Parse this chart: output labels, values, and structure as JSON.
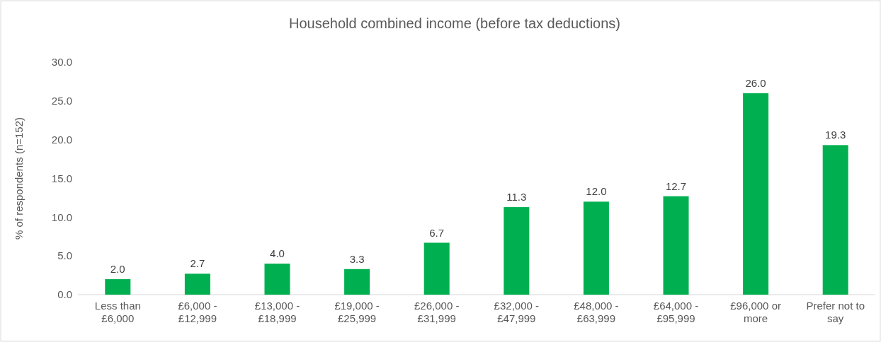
{
  "chart_data": {
    "type": "bar",
    "title": "Household combined income (before tax deductions)",
    "ylabel": "% of respondents (n=152)",
    "categories": [
      "Less than £6,000",
      "£6,000 - £12,999",
      "£13,000 - £18,999",
      "£19,000 - £25,999",
      "£26,000 - £31,999",
      "£32,000 - £47,999",
      "£48,000 - £63,999",
      "£64,000 - £95,999",
      "£96,000 or more",
      "Prefer not to say"
    ],
    "values": [
      2.0,
      2.7,
      4.0,
      3.3,
      6.7,
      11.3,
      12.0,
      12.7,
      26.0,
      19.3
    ],
    "color": "#00b050",
    "ylim": [
      0,
      30
    ],
    "yticks": [
      {
        "value": 0,
        "label": "0.0"
      },
      {
        "value": 5,
        "label": "5.0"
      },
      {
        "value": 10,
        "label": "10.0"
      },
      {
        "value": 15,
        "label": "15.0"
      },
      {
        "value": 20,
        "label": "20.0"
      },
      {
        "value": 25,
        "label": "25.0"
      },
      {
        "value": 30,
        "label": "30.0"
      }
    ],
    "grid": false,
    "value_labels": [
      "2.0",
      "2.7",
      "4.0",
      "3.3",
      "6.7",
      "11.3",
      "12.0",
      "12.7",
      "26.0",
      "19.3"
    ]
  }
}
